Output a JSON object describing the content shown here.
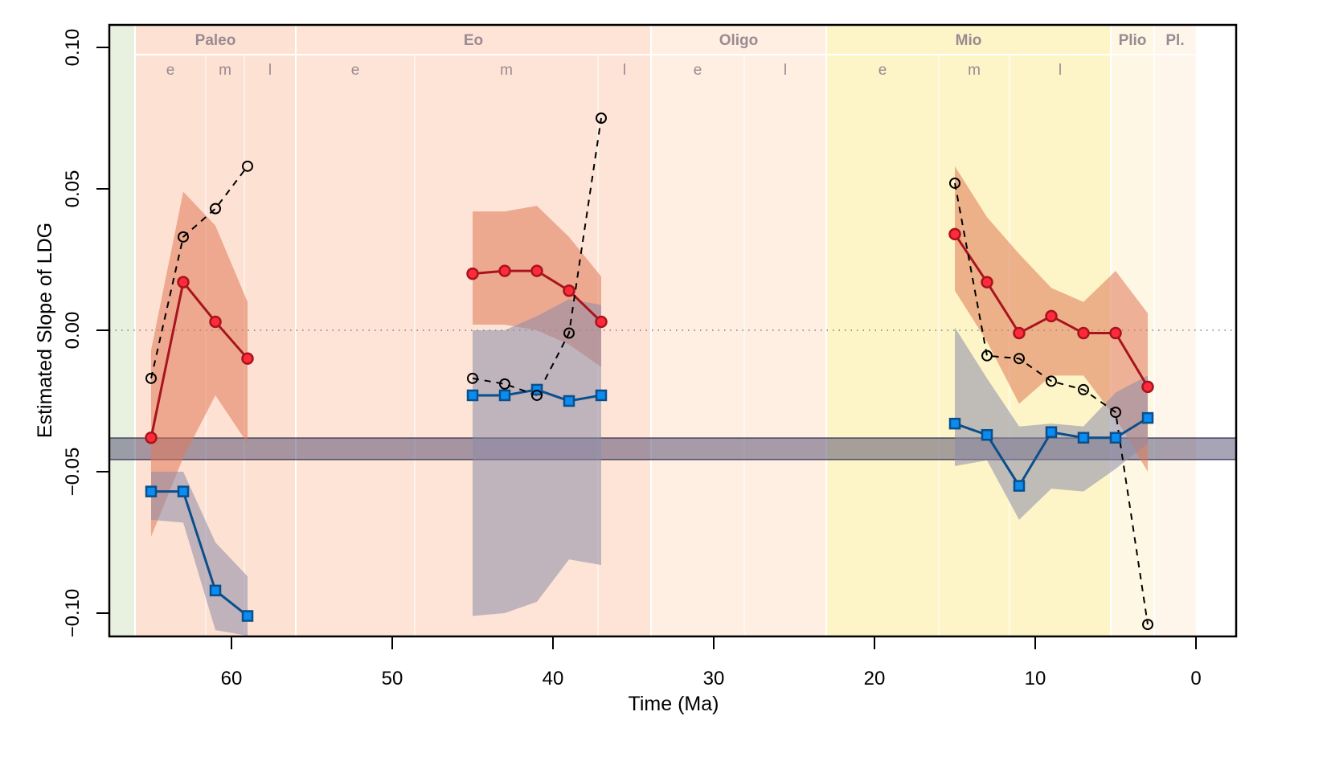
{
  "chart_data": {
    "type": "line",
    "title": "",
    "xlabel": "Time (Ma)",
    "ylabel": "Estimated Slope of LDG",
    "xlim": [
      67.6,
      -2.5
    ],
    "ylim": [
      -0.1085,
      0.108
    ],
    "x_ticks": [
      60,
      50,
      40,
      30,
      20,
      10,
      0
    ],
    "x_tick_labels": [
      "60",
      "50",
      "40",
      "30",
      "20",
      "10",
      "0"
    ],
    "y_ticks": [
      0.1,
      0.05,
      0.0,
      -0.05,
      -0.1
    ],
    "y_tick_labels": [
      "0.10",
      "0.05",
      "0.00",
      "−0.05",
      "−0.10"
    ],
    "reference_line": {
      "y": 0.0,
      "style": "dotted"
    },
    "reference_band": {
      "ymin": -0.0457,
      "ymax": -0.0381,
      "color": "#3c3560"
    },
    "periods": [
      {
        "name": "",
        "start": 67.6,
        "end": 66.0,
        "color": "#e8f0e0"
      },
      {
        "name": "Paleo",
        "start": 66.0,
        "end": 56.0,
        "color": "#fde2d3"
      },
      {
        "name": "Eo",
        "start": 56.0,
        "end": 33.9,
        "color": "#fde4d6"
      },
      {
        "name": "Oligo",
        "start": 33.9,
        "end": 23.0,
        "color": "#feefe2"
      },
      {
        "name": "Mio",
        "start": 23.0,
        "end": 5.3,
        "color": "#fdf5c8"
      },
      {
        "name": "Plio",
        "start": 5.3,
        "end": 2.6,
        "color": "#fef7e4"
      },
      {
        "name": "Pl.",
        "start": 2.6,
        "end": 0.0,
        "color": "#fef6ea"
      }
    ],
    "subdivisions": [
      {
        "name": "e",
        "start": 66.0,
        "end": 61.6
      },
      {
        "name": "m",
        "start": 61.6,
        "end": 59.2
      },
      {
        "name": "l",
        "start": 59.2,
        "end": 56.0
      },
      {
        "name": "e",
        "start": 56.0,
        "end": 48.6
      },
      {
        "name": "m",
        "start": 48.6,
        "end": 37.2
      },
      {
        "name": "l",
        "start": 37.2,
        "end": 33.9
      },
      {
        "name": "e",
        "start": 33.9,
        "end": 28.1
      },
      {
        "name": "l",
        "start": 28.1,
        "end": 23.0
      },
      {
        "name": "e",
        "start": 23.0,
        "end": 16.0
      },
      {
        "name": "m",
        "start": 16.0,
        "end": 11.6
      },
      {
        "name": "l",
        "start": 11.6,
        "end": 5.3
      }
    ],
    "series": [
      {
        "name": "red-estimate",
        "color": "#a8141e",
        "fill": "#ff2a3a",
        "marker": "circle",
        "ci_color": "#e07858",
        "segments": [
          {
            "x": [
              65,
              63,
              61,
              59
            ],
            "y": [
              -0.038,
              0.017,
              0.003,
              -0.01
            ],
            "ci_upper": [
              -0.007,
              0.049,
              0.037,
              0.01
            ],
            "ci_lower": [
              -0.073,
              -0.045,
              -0.023,
              -0.04
            ]
          },
          {
            "x": [
              45,
              43,
              41,
              39,
              37
            ],
            "y": [
              0.02,
              0.021,
              0.021,
              0.014,
              0.003
            ],
            "ci_upper": [
              0.042,
              0.042,
              0.044,
              0.033,
              0.019
            ],
            "ci_lower": [
              0.002,
              0.002,
              0.0,
              -0.005,
              -0.013
            ]
          },
          {
            "x": [
              15,
              13,
              11,
              9,
              7,
              5,
              3
            ],
            "y": [
              0.034,
              0.017,
              -0.001,
              0.005,
              -0.001,
              -0.001,
              -0.02
            ],
            "ci_upper": [
              0.058,
              0.04,
              0.027,
              0.015,
              0.01,
              0.021,
              0.006
            ],
            "ci_lower": [
              0.014,
              -0.004,
              -0.026,
              -0.016,
              -0.016,
              -0.031,
              -0.05
            ]
          }
        ]
      },
      {
        "name": "blue-estimate",
        "color": "#0a4f8c",
        "fill": "#0a8cf0",
        "marker": "square",
        "ci_color": "#8c8aa8",
        "segments": [
          {
            "x": [
              65,
              63,
              61,
              59
            ],
            "y": [
              -0.057,
              -0.057,
              -0.092,
              -0.101
            ],
            "ci_upper": [
              -0.05,
              -0.05,
              -0.075,
              -0.087
            ],
            "ci_lower": [
              -0.067,
              -0.068,
              -0.106,
              -0.108
            ]
          },
          {
            "x": [
              45,
              43,
              41,
              39,
              37
            ],
            "y": [
              -0.023,
              -0.023,
              -0.021,
              -0.025,
              -0.023
            ],
            "ci_upper": [
              0.0,
              0.0,
              0.005,
              0.011,
              0.009
            ],
            "ci_lower": [
              -0.101,
              -0.1,
              -0.096,
              -0.081,
              -0.083
            ]
          },
          {
            "x": [
              15,
              13,
              11,
              9,
              7,
              5,
              3
            ],
            "y": [
              -0.033,
              -0.037,
              -0.055,
              -0.036,
              -0.038,
              -0.038,
              -0.031
            ],
            "ci_upper": [
              0.001,
              -0.017,
              -0.034,
              -0.033,
              -0.034,
              -0.022,
              -0.016
            ],
            "ci_lower": [
              -0.048,
              -0.046,
              -0.067,
              -0.056,
              -0.057,
              -0.049,
              -0.04
            ]
          }
        ]
      },
      {
        "name": "black-dashed-estimate",
        "color": "#000000",
        "marker": "open-circle",
        "line_style": "dashed",
        "segments": [
          {
            "x": [
              65,
              63,
              61,
              59
            ],
            "y": [
              -0.017,
              0.033,
              0.043,
              0.058
            ]
          },
          {
            "x": [
              45,
              43,
              41,
              39,
              37
            ],
            "y": [
              -0.017,
              -0.019,
              -0.023,
              -0.001,
              0.075
            ]
          },
          {
            "x": [
              15,
              13,
              11,
              9,
              7,
              5,
              3
            ],
            "y": [
              0.052,
              -0.009,
              -0.01,
              -0.018,
              -0.021,
              -0.029,
              -0.104
            ]
          }
        ]
      }
    ],
    "legend": "none",
    "grid": false
  }
}
